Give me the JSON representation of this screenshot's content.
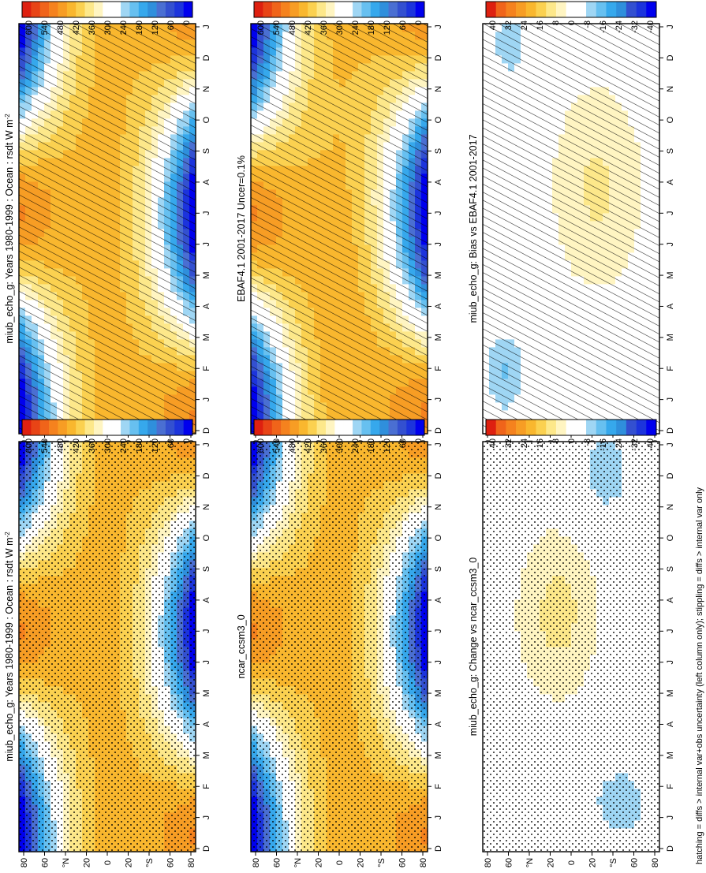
{
  "footnote": "hatching = diffs > internal var+obs uncertainty (left column only); stippling = diffs > internal var only",
  "colors": {
    "abs_scale": [
      "#0000ee",
      "#1c34dc",
      "#3350d0",
      "#4a6fd2",
      "#2f8fdc",
      "#36a8ec",
      "#67c0f0",
      "#9fd6f4",
      "#ffffff",
      "#ffffff",
      "#fff5c2",
      "#fde88a",
      "#fbd150",
      "#f9b72e",
      "#f79d24",
      "#f5821e",
      "#f0641a",
      "#e84416",
      "#de2010"
    ],
    "diff_scale": [
      "#0000ee",
      "#1c34dc",
      "#3350d0",
      "#2f8fdc",
      "#36a8ec",
      "#67c0f0",
      "#9fd6f4",
      "#ffffff",
      "#ffffff",
      "#fff5c2",
      "#fde88a",
      "#fbd150",
      "#f9b72e",
      "#f79d24",
      "#f5821e",
      "#f0641a",
      "#de2010"
    ]
  },
  "chart_data": [
    {
      "type": "heatmap",
      "panel": "left-top",
      "title": "miub_echo_g: Years 1980-1999 : Ocean : rsdt W m",
      "title_superscript": "-2",
      "x_ticks": [
        "D",
        "J",
        "F",
        "M",
        "A",
        "M",
        "J",
        "J",
        "A",
        "S",
        "O",
        "N",
        "D",
        "J"
      ],
      "y_ticks": [
        "80",
        "60",
        "°N",
        "20",
        "0",
        "20",
        "°S",
        "60",
        "80"
      ],
      "colorbar_labels": [
        "600",
        "540",
        "480",
        "420",
        "360",
        "300",
        "240",
        "180",
        "120",
        "60",
        "0"
      ],
      "zlim": [
        0,
        600
      ],
      "field": "rsdt",
      "overlay": "hatching"
    },
    {
      "type": "heatmap",
      "panel": "left-middle",
      "title": "EBAF4.1 2001-2017 Uncer=0.1%",
      "x_ticks": [
        "D",
        "J",
        "F",
        "M",
        "A",
        "M",
        "J",
        "J",
        "A",
        "S",
        "O",
        "N",
        "D",
        "J"
      ],
      "y_ticks": [
        "80",
        "60",
        "°N",
        "20",
        "0",
        "20",
        "°S",
        "60",
        "80"
      ],
      "colorbar_labels": [
        "600",
        "540",
        "480",
        "420",
        "360",
        "300",
        "240",
        "180",
        "120",
        "60",
        "0"
      ],
      "zlim": [
        0,
        600
      ],
      "field": "rsdt",
      "overlay": "hatching"
    },
    {
      "type": "heatmap",
      "panel": "left-bottom",
      "title": "miub_echo_g: Bias vs EBAF4.1 2001-2017",
      "x_ticks": [
        "D",
        "J",
        "F",
        "M",
        "A",
        "M",
        "J",
        "J",
        "A",
        "S",
        "O",
        "N",
        "D",
        "J"
      ],
      "y_ticks": [
        "80",
        "60",
        "°N",
        "20",
        "0",
        "20",
        "°S",
        "60",
        "80"
      ],
      "colorbar_labels": [
        "40",
        "32",
        "24",
        "16",
        "8",
        "0",
        "-8",
        "-16",
        "-24",
        "-32",
        "-40"
      ],
      "zlim": [
        -40,
        40
      ],
      "field": "bias",
      "overlay": "hatching"
    },
    {
      "type": "heatmap",
      "panel": "right-top",
      "title": "miub_echo_g: Years 1980-1999 : Ocean : rsdt W m",
      "title_superscript": "-2",
      "x_ticks": [
        "D",
        "J",
        "F",
        "M",
        "A",
        "M",
        "J",
        "J",
        "A",
        "S",
        "O",
        "N",
        "D",
        "J"
      ],
      "y_ticks": [
        "80",
        "60",
        "°N",
        "20",
        "0",
        "20",
        "°S",
        "60",
        "80"
      ],
      "colorbar_labels": [
        "600",
        "540",
        "480",
        "420",
        "360",
        "300",
        "240",
        "180",
        "120",
        "60",
        "0"
      ],
      "zlim": [
        0,
        600
      ],
      "field": "rsdt",
      "overlay": "stippling"
    },
    {
      "type": "heatmap",
      "panel": "right-middle",
      "title": "ncar_ccsm3_0",
      "x_ticks": [
        "D",
        "J",
        "F",
        "M",
        "A",
        "M",
        "J",
        "J",
        "A",
        "S",
        "O",
        "N",
        "D",
        "J"
      ],
      "y_ticks": [
        "80",
        "60",
        "°N",
        "20",
        "0",
        "20",
        "°S",
        "60",
        "80"
      ],
      "colorbar_labels": [
        "600",
        "540",
        "480",
        "420",
        "360",
        "300",
        "240",
        "180",
        "120",
        "60",
        "0"
      ],
      "zlim": [
        0,
        600
      ],
      "field": "rsdt",
      "overlay": "stippling"
    },
    {
      "type": "heatmap",
      "panel": "right-bottom",
      "title": "miub_echo_g: Change vs ncar_ccsm3_0",
      "x_ticks": [
        "D",
        "J",
        "F",
        "M",
        "A",
        "M",
        "J",
        "J",
        "A",
        "S",
        "O",
        "N",
        "D",
        "J"
      ],
      "y_ticks": [
        "80",
        "60",
        "°N",
        "20",
        "0",
        "20",
        "°S",
        "60",
        "80"
      ],
      "colorbar_labels": [
        "40",
        "32",
        "24",
        "16",
        "8",
        "0",
        "-8",
        "-16",
        "-24",
        "-32",
        "-40"
      ],
      "zlim": [
        -40,
        40
      ],
      "field": "change",
      "overlay": "stippling"
    }
  ]
}
